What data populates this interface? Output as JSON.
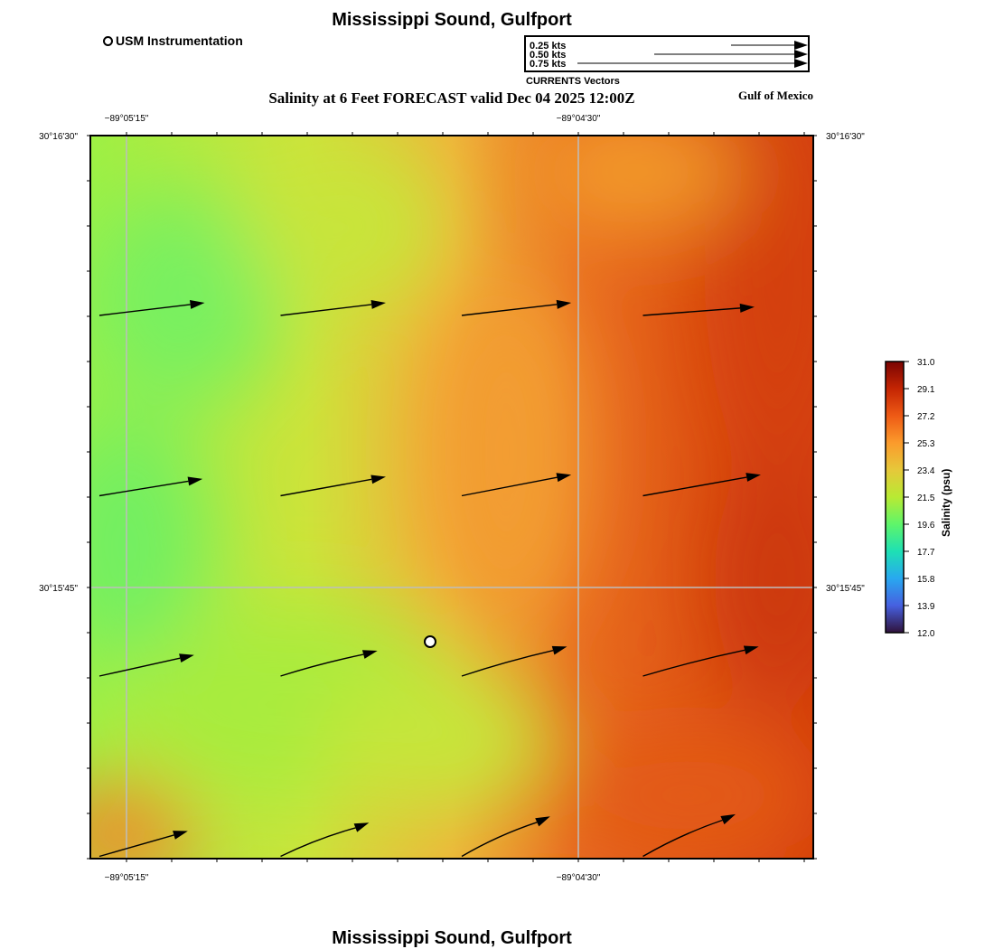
{
  "header": {
    "title": "Mississippi Sound, Gulfport",
    "subtitle": "Salinity at 6 Feet FORECAST valid Dec 04 2025 12:00Z",
    "region_label": "Gulf of Mexico",
    "station_legend_label": "USM Instrumentation"
  },
  "vector_legend": {
    "caption": "CURRENTS Vectors",
    "entries": [
      {
        "label": "0.25 kts",
        "speed_kts": 0.25
      },
      {
        "label": "0.50 kts",
        "speed_kts": 0.5
      },
      {
        "label": "0.75 kts",
        "speed_kts": 0.75
      }
    ]
  },
  "map": {
    "lon_labels": [
      {
        "label": "−89°05'15\"",
        "value": -89.0875
      },
      {
        "label": "−89°04'30\"",
        "value": -89.075
      }
    ],
    "lat_labels": [
      {
        "label": "30°16'30\"",
        "value": 30.275
      },
      {
        "label": "30°15'45\"",
        "value": 30.2625
      }
    ],
    "station": {
      "name": "USM Instrumentation",
      "lon": -89.0791,
      "lat": 30.261
    },
    "current_vectors_kts_rel": [
      {
        "row": 0,
        "col": 0,
        "u": 0.5,
        "v": 0.06,
        "curve": 0
      },
      {
        "row": 0,
        "col": 1,
        "u": 0.5,
        "v": 0.06,
        "curve": 0
      },
      {
        "row": 0,
        "col": 2,
        "u": 0.52,
        "v": 0.06,
        "curve": 0
      },
      {
        "row": 0,
        "col": 3,
        "u": 0.53,
        "v": 0.04,
        "curve": 0
      },
      {
        "row": 1,
        "col": 0,
        "u": 0.49,
        "v": 0.08,
        "curve": 0
      },
      {
        "row": 1,
        "col": 1,
        "u": 0.5,
        "v": 0.09,
        "curve": 0
      },
      {
        "row": 1,
        "col": 2,
        "u": 0.52,
        "v": 0.1,
        "curve": 0
      },
      {
        "row": 1,
        "col": 3,
        "u": 0.56,
        "v": 0.1,
        "curve": 0
      },
      {
        "row": 2,
        "col": 0,
        "u": 0.45,
        "v": 0.1,
        "curve": 0
      },
      {
        "row": 2,
        "col": 1,
        "u": 0.46,
        "v": 0.12,
        "curve": 0.3
      },
      {
        "row": 2,
        "col": 2,
        "u": 0.5,
        "v": 0.14,
        "curve": 0.3
      },
      {
        "row": 2,
        "col": 3,
        "u": 0.55,
        "v": 0.14,
        "curve": 0.3
      },
      {
        "row": 3,
        "col": 0,
        "u": 0.42,
        "v": 0.12,
        "curve": 0
      },
      {
        "row": 3,
        "col": 1,
        "u": 0.42,
        "v": 0.16,
        "curve": 0.5
      },
      {
        "row": 3,
        "col": 2,
        "u": 0.42,
        "v": 0.19,
        "curve": 0.6
      },
      {
        "row": 3,
        "col": 3,
        "u": 0.44,
        "v": 0.2,
        "curve": 0.6
      }
    ]
  },
  "colorbar": {
    "title": "Salinity (psu)",
    "ticks": [
      "31.0",
      "29.1",
      "27.2",
      "25.3",
      "23.4",
      "21.5",
      "19.6",
      "17.7",
      "15.8",
      "13.9",
      "12.0"
    ],
    "min": 12.0,
    "max": 31.0
  },
  "colors": {
    "map_low": "#6ef05a",
    "map_mid": "#e6d83a",
    "map_high": "#d43a0a",
    "grid": "#bdbdbd"
  }
}
